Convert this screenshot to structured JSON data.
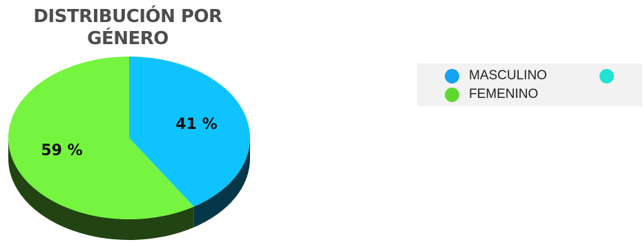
{
  "chart_data": {
    "type": "pie",
    "title": "DISTRIBUCIÓN POR\nGÉNERO",
    "categories": [
      "MASCULINO",
      "FEMENINO"
    ],
    "values": [
      41,
      59
    ],
    "data_labels": [
      "41 %",
      "59 %"
    ],
    "colors": [
      "#0fc3ff",
      "#75f440"
    ],
    "legend_placement": "right",
    "three_d": true
  },
  "legend": {
    "items": [
      {
        "label": "MASCULINO",
        "color": "#13a3f2"
      },
      {
        "label": "FEMENINO",
        "color": "#5ed82f"
      },
      {
        "label": "",
        "color": "#21e3d1"
      }
    ]
  }
}
